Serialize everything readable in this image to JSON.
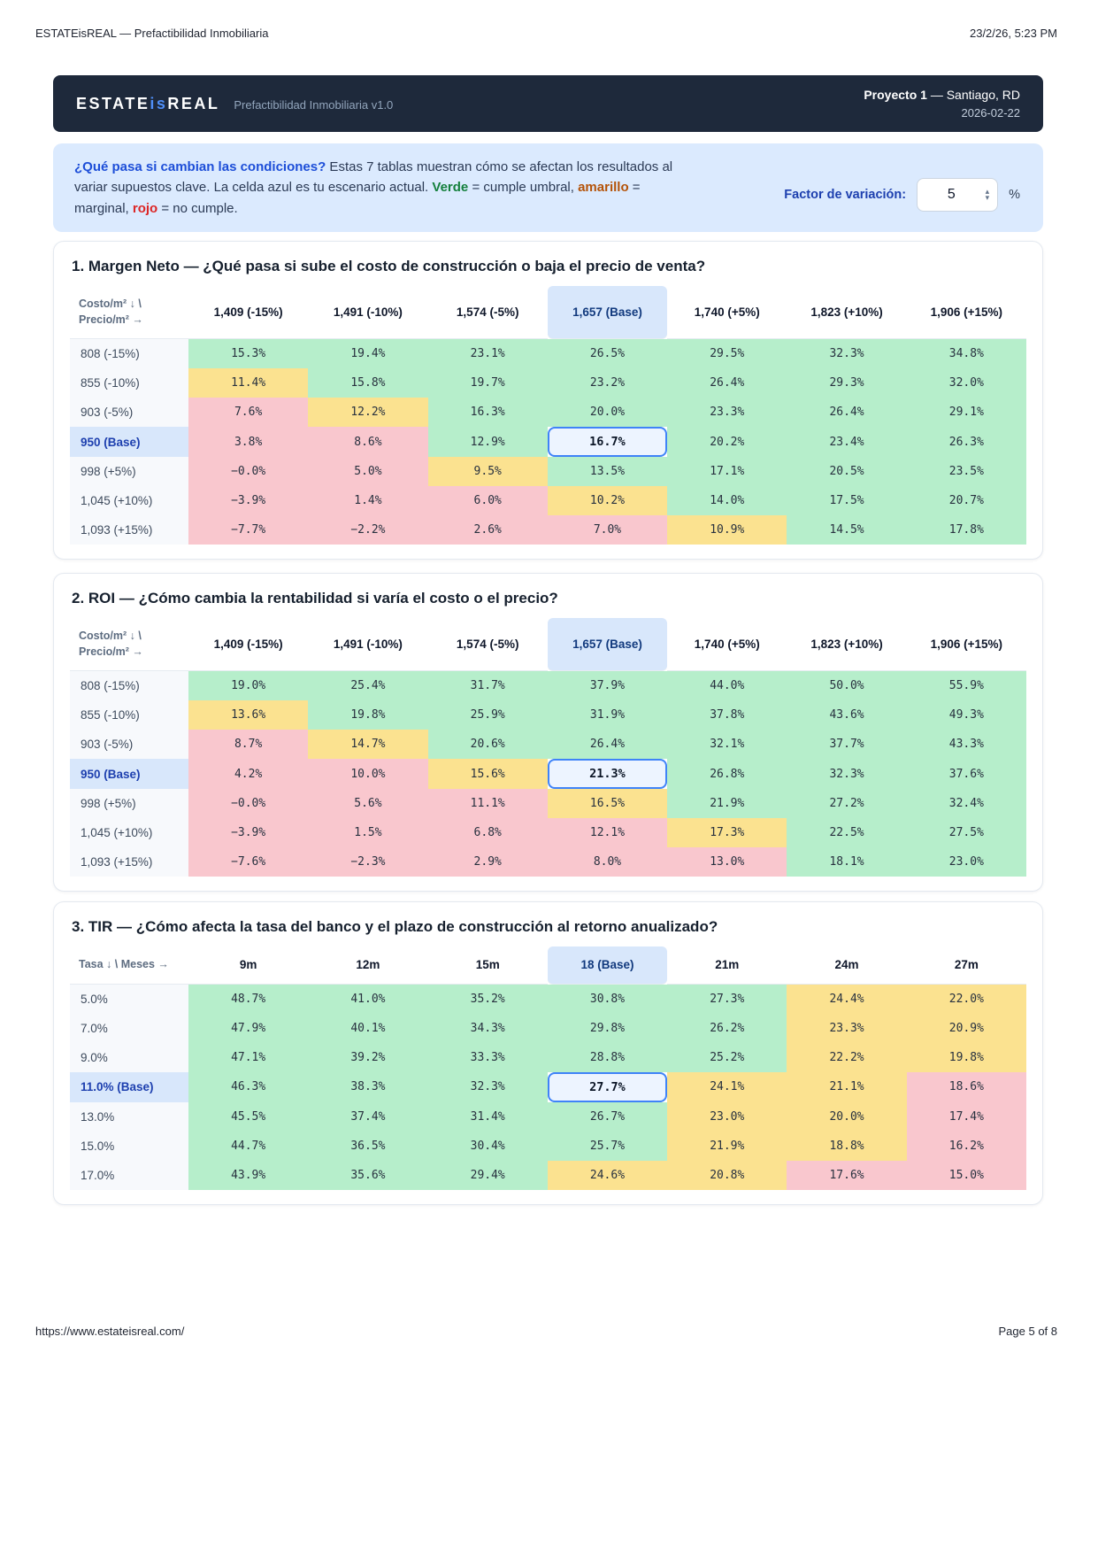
{
  "print_header": {
    "title": "ESTATEisREAL — Prefactibilidad Inmobiliaria",
    "datetime": "23/2/26, 5:23 PM"
  },
  "navbar": {
    "brand_estate": "ESTATE",
    "brand_is": "is",
    "brand_real": "REAL",
    "subtitle": "Prefactibilidad Inmobiliaria v1.0",
    "project_bold": "Proyecto 1",
    "project_rest": " — Santiago, RD",
    "date": "2026-02-22"
  },
  "intro": {
    "lead_bold": "¿Qué pasa si cambian las condiciones?",
    "text_1": " Estas 7 tablas muestran cómo se afectan los resultados al variar supuestos clave. La celda azul es tu escenario actual. ",
    "verde": "Verde",
    "text_2": " = cumple umbral, ",
    "amarillo": "amarillo",
    "text_3": " = marginal, ",
    "rojo": "rojo",
    "text_4": " = no cumple.",
    "factor_label": "Factor de variación:",
    "factor_value": "5",
    "factor_unit": "%"
  },
  "colors": {
    "accent_blue": "#3f83f8",
    "header_bar": "#1e293b",
    "info_bg": "#dbeafe",
    "green_bg": "#b6eecb",
    "yellow_bg": "#fbe290",
    "red_bg": "#f9c7ce",
    "base_cell_bg": "#edf4ff",
    "base_header_bg": "#d8e7fb"
  },
  "tables": [
    {
      "title": "1. Margen Neto — ¿Qué pasa si sube el costo de construcción o baja el precio de venta?",
      "corner": "Costo/m² ↓ \\ Precio/m² →",
      "base_col_index": 3,
      "columns": [
        "1,409 (-15%)",
        "1,491 (-10%)",
        "1,574 (-5%)",
        "1,657 (Base)",
        "1,740 (+5%)",
        "1,823 (+10%)",
        "1,906 (+15%)"
      ],
      "rows": [
        {
          "label": "808 (-15%)",
          "base": false,
          "cells": [
            {
              "v": "15.3%",
              "c": "g"
            },
            {
              "v": "19.4%",
              "c": "g"
            },
            {
              "v": "23.1%",
              "c": "g"
            },
            {
              "v": "26.5%",
              "c": "g"
            },
            {
              "v": "29.5%",
              "c": "g"
            },
            {
              "v": "32.3%",
              "c": "g"
            },
            {
              "v": "34.8%",
              "c": "g"
            }
          ]
        },
        {
          "label": "855 (-10%)",
          "base": false,
          "cells": [
            {
              "v": "11.4%",
              "c": "y"
            },
            {
              "v": "15.8%",
              "c": "g"
            },
            {
              "v": "19.7%",
              "c": "g"
            },
            {
              "v": "23.2%",
              "c": "g"
            },
            {
              "v": "26.4%",
              "c": "g"
            },
            {
              "v": "29.3%",
              "c": "g"
            },
            {
              "v": "32.0%",
              "c": "g"
            }
          ]
        },
        {
          "label": "903 (-5%)",
          "base": false,
          "cells": [
            {
              "v": "7.6%",
              "c": "r"
            },
            {
              "v": "12.2%",
              "c": "y"
            },
            {
              "v": "16.3%",
              "c": "g"
            },
            {
              "v": "20.0%",
              "c": "g"
            },
            {
              "v": "23.3%",
              "c": "g"
            },
            {
              "v": "26.4%",
              "c": "g"
            },
            {
              "v": "29.1%",
              "c": "g"
            }
          ]
        },
        {
          "label": "950 (Base)",
          "base": true,
          "cells": [
            {
              "v": "3.8%",
              "c": "r"
            },
            {
              "v": "8.6%",
              "c": "r"
            },
            {
              "v": "12.9%",
              "c": "g"
            },
            {
              "v": "16.7%",
              "c": "b"
            },
            {
              "v": "20.2%",
              "c": "g"
            },
            {
              "v": "23.4%",
              "c": "g"
            },
            {
              "v": "26.3%",
              "c": "g"
            }
          ]
        },
        {
          "label": "998 (+5%)",
          "base": false,
          "cells": [
            {
              "v": "−0.0%",
              "c": "r"
            },
            {
              "v": "5.0%",
              "c": "r"
            },
            {
              "v": "9.5%",
              "c": "y"
            },
            {
              "v": "13.5%",
              "c": "g"
            },
            {
              "v": "17.1%",
              "c": "g"
            },
            {
              "v": "20.5%",
              "c": "g"
            },
            {
              "v": "23.5%",
              "c": "g"
            }
          ]
        },
        {
          "label": "1,045 (+10%)",
          "base": false,
          "cells": [
            {
              "v": "−3.9%",
              "c": "r"
            },
            {
              "v": "1.4%",
              "c": "r"
            },
            {
              "v": "6.0%",
              "c": "r"
            },
            {
              "v": "10.2%",
              "c": "y"
            },
            {
              "v": "14.0%",
              "c": "g"
            },
            {
              "v": "17.5%",
              "c": "g"
            },
            {
              "v": "20.7%",
              "c": "g"
            }
          ]
        },
        {
          "label": "1,093 (+15%)",
          "base": false,
          "cells": [
            {
              "v": "−7.7%",
              "c": "r"
            },
            {
              "v": "−2.2%",
              "c": "r"
            },
            {
              "v": "2.6%",
              "c": "r"
            },
            {
              "v": "7.0%",
              "c": "r"
            },
            {
              "v": "10.9%",
              "c": "y"
            },
            {
              "v": "14.5%",
              "c": "g"
            },
            {
              "v": "17.8%",
              "c": "g"
            }
          ]
        }
      ]
    },
    {
      "title": "2. ROI — ¿Cómo cambia la rentabilidad si varía el costo o el precio?",
      "corner": "Costo/m² ↓ \\ Precio/m² →",
      "base_col_index": 3,
      "columns": [
        "1,409 (-15%)",
        "1,491 (-10%)",
        "1,574 (-5%)",
        "1,657 (Base)",
        "1,740 (+5%)",
        "1,823 (+10%)",
        "1,906 (+15%)"
      ],
      "rows": [
        {
          "label": "808 (-15%)",
          "base": false,
          "cells": [
            {
              "v": "19.0%",
              "c": "g"
            },
            {
              "v": "25.4%",
              "c": "g"
            },
            {
              "v": "31.7%",
              "c": "g"
            },
            {
              "v": "37.9%",
              "c": "g"
            },
            {
              "v": "44.0%",
              "c": "g"
            },
            {
              "v": "50.0%",
              "c": "g"
            },
            {
              "v": "55.9%",
              "c": "g"
            }
          ]
        },
        {
          "label": "855 (-10%)",
          "base": false,
          "cells": [
            {
              "v": "13.6%",
              "c": "y"
            },
            {
              "v": "19.8%",
              "c": "g"
            },
            {
              "v": "25.9%",
              "c": "g"
            },
            {
              "v": "31.9%",
              "c": "g"
            },
            {
              "v": "37.8%",
              "c": "g"
            },
            {
              "v": "43.6%",
              "c": "g"
            },
            {
              "v": "49.3%",
              "c": "g"
            }
          ]
        },
        {
          "label": "903 (-5%)",
          "base": false,
          "cells": [
            {
              "v": "8.7%",
              "c": "r"
            },
            {
              "v": "14.7%",
              "c": "y"
            },
            {
              "v": "20.6%",
              "c": "g"
            },
            {
              "v": "26.4%",
              "c": "g"
            },
            {
              "v": "32.1%",
              "c": "g"
            },
            {
              "v": "37.7%",
              "c": "g"
            },
            {
              "v": "43.3%",
              "c": "g"
            }
          ]
        },
        {
          "label": "950 (Base)",
          "base": true,
          "cells": [
            {
              "v": "4.2%",
              "c": "r"
            },
            {
              "v": "10.0%",
              "c": "r"
            },
            {
              "v": "15.6%",
              "c": "y"
            },
            {
              "v": "21.3%",
              "c": "b"
            },
            {
              "v": "26.8%",
              "c": "g"
            },
            {
              "v": "32.3%",
              "c": "g"
            },
            {
              "v": "37.6%",
              "c": "g"
            }
          ]
        },
        {
          "label": "998 (+5%)",
          "base": false,
          "cells": [
            {
              "v": "−0.0%",
              "c": "r"
            },
            {
              "v": "5.6%",
              "c": "r"
            },
            {
              "v": "11.1%",
              "c": "r"
            },
            {
              "v": "16.5%",
              "c": "y"
            },
            {
              "v": "21.9%",
              "c": "g"
            },
            {
              "v": "27.2%",
              "c": "g"
            },
            {
              "v": "32.4%",
              "c": "g"
            }
          ]
        },
        {
          "label": "1,045 (+10%)",
          "base": false,
          "cells": [
            {
              "v": "−3.9%",
              "c": "r"
            },
            {
              "v": "1.5%",
              "c": "r"
            },
            {
              "v": "6.8%",
              "c": "r"
            },
            {
              "v": "12.1%",
              "c": "r"
            },
            {
              "v": "17.3%",
              "c": "y"
            },
            {
              "v": "22.5%",
              "c": "g"
            },
            {
              "v": "27.5%",
              "c": "g"
            }
          ]
        },
        {
          "label": "1,093 (+15%)",
          "base": false,
          "cells": [
            {
              "v": "−7.6%",
              "c": "r"
            },
            {
              "v": "−2.3%",
              "c": "r"
            },
            {
              "v": "2.9%",
              "c": "r"
            },
            {
              "v": "8.0%",
              "c": "r"
            },
            {
              "v": "13.0%",
              "c": "r"
            },
            {
              "v": "18.1%",
              "c": "g"
            },
            {
              "v": "23.0%",
              "c": "g"
            }
          ]
        }
      ]
    },
    {
      "title": "3. TIR — ¿Cómo afecta la tasa del banco y el plazo de construcción al retorno anualizado?",
      "corner": "Tasa ↓ \\ Meses →",
      "base_col_index": 3,
      "columns": [
        "9m",
        "12m",
        "15m",
        "18 (Base)",
        "21m",
        "24m",
        "27m"
      ],
      "rows": [
        {
          "label": "5.0%",
          "base": false,
          "cells": [
            {
              "v": "48.7%",
              "c": "g"
            },
            {
              "v": "41.0%",
              "c": "g"
            },
            {
              "v": "35.2%",
              "c": "g"
            },
            {
              "v": "30.8%",
              "c": "g"
            },
            {
              "v": "27.3%",
              "c": "g"
            },
            {
              "v": "24.4%",
              "c": "y"
            },
            {
              "v": "22.0%",
              "c": "y"
            }
          ]
        },
        {
          "label": "7.0%",
          "base": false,
          "cells": [
            {
              "v": "47.9%",
              "c": "g"
            },
            {
              "v": "40.1%",
              "c": "g"
            },
            {
              "v": "34.3%",
              "c": "g"
            },
            {
              "v": "29.8%",
              "c": "g"
            },
            {
              "v": "26.2%",
              "c": "g"
            },
            {
              "v": "23.3%",
              "c": "y"
            },
            {
              "v": "20.9%",
              "c": "y"
            }
          ]
        },
        {
          "label": "9.0%",
          "base": false,
          "cells": [
            {
              "v": "47.1%",
              "c": "g"
            },
            {
              "v": "39.2%",
              "c": "g"
            },
            {
              "v": "33.3%",
              "c": "g"
            },
            {
              "v": "28.8%",
              "c": "g"
            },
            {
              "v": "25.2%",
              "c": "g"
            },
            {
              "v": "22.2%",
              "c": "y"
            },
            {
              "v": "19.8%",
              "c": "y"
            }
          ]
        },
        {
          "label": "11.0% (Base)",
          "base": true,
          "cells": [
            {
              "v": "46.3%",
              "c": "g"
            },
            {
              "v": "38.3%",
              "c": "g"
            },
            {
              "v": "32.3%",
              "c": "g"
            },
            {
              "v": "27.7%",
              "c": "b"
            },
            {
              "v": "24.1%",
              "c": "y"
            },
            {
              "v": "21.1%",
              "c": "y"
            },
            {
              "v": "18.6%",
              "c": "r"
            }
          ]
        },
        {
          "label": "13.0%",
          "base": false,
          "cells": [
            {
              "v": "45.5%",
              "c": "g"
            },
            {
              "v": "37.4%",
              "c": "g"
            },
            {
              "v": "31.4%",
              "c": "g"
            },
            {
              "v": "26.7%",
              "c": "g"
            },
            {
              "v": "23.0%",
              "c": "y"
            },
            {
              "v": "20.0%",
              "c": "y"
            },
            {
              "v": "17.4%",
              "c": "r"
            }
          ]
        },
        {
          "label": "15.0%",
          "base": false,
          "cells": [
            {
              "v": "44.7%",
              "c": "g"
            },
            {
              "v": "36.5%",
              "c": "g"
            },
            {
              "v": "30.4%",
              "c": "g"
            },
            {
              "v": "25.7%",
              "c": "g"
            },
            {
              "v": "21.9%",
              "c": "y"
            },
            {
              "v": "18.8%",
              "c": "y"
            },
            {
              "v": "16.2%",
              "c": "r"
            }
          ]
        },
        {
          "label": "17.0%",
          "base": false,
          "cells": [
            {
              "v": "43.9%",
              "c": "g"
            },
            {
              "v": "35.6%",
              "c": "g"
            },
            {
              "v": "29.4%",
              "c": "g"
            },
            {
              "v": "24.6%",
              "c": "y"
            },
            {
              "v": "20.8%",
              "c": "y"
            },
            {
              "v": "17.6%",
              "c": "r"
            },
            {
              "v": "15.0%",
              "c": "r"
            }
          ]
        }
      ]
    }
  ],
  "footer": {
    "url": "https://www.estateisreal.com/",
    "page": "Page 5 of 8"
  }
}
